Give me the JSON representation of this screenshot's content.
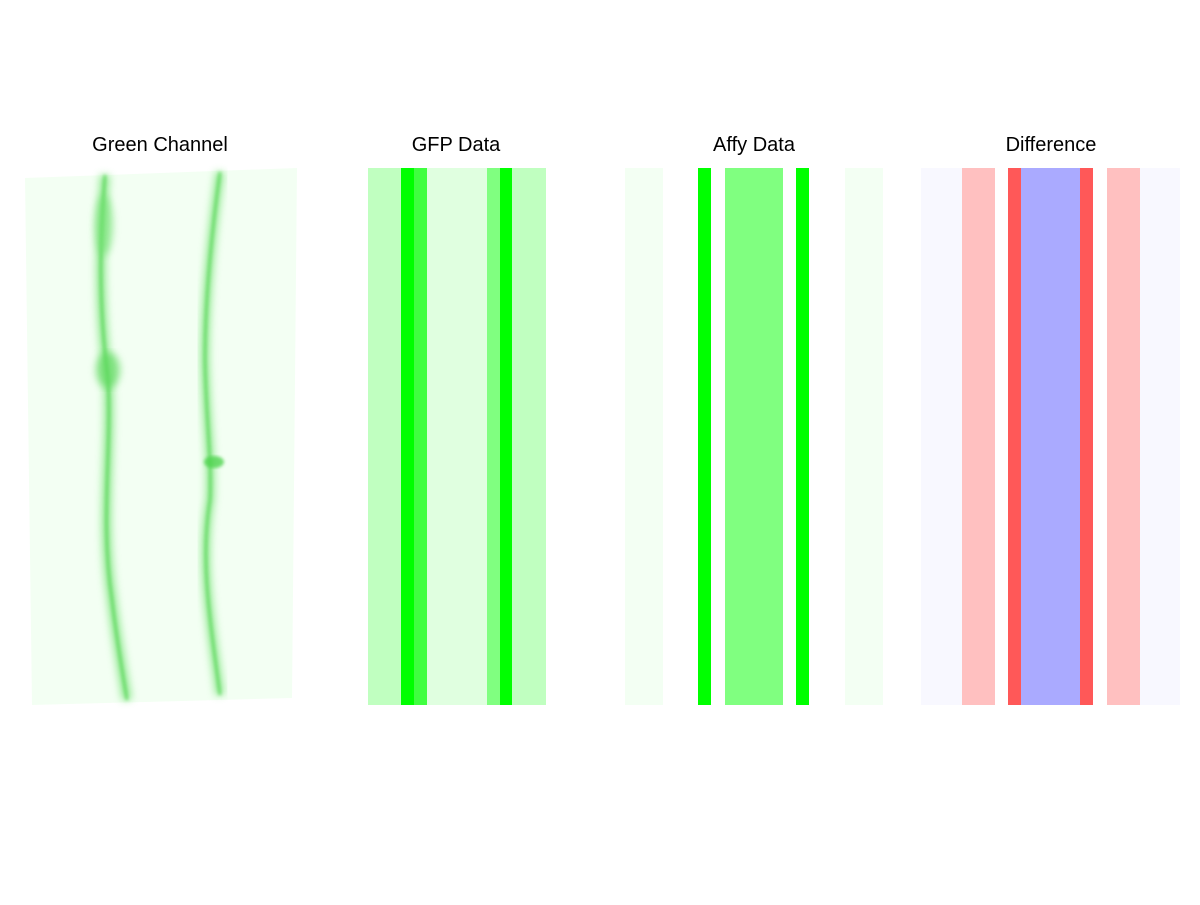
{
  "panels": [
    {
      "title": "Green Channel"
    },
    {
      "title": "GFP Data"
    },
    {
      "title": "Affy Data"
    },
    {
      "title": "Difference"
    }
  ]
}
